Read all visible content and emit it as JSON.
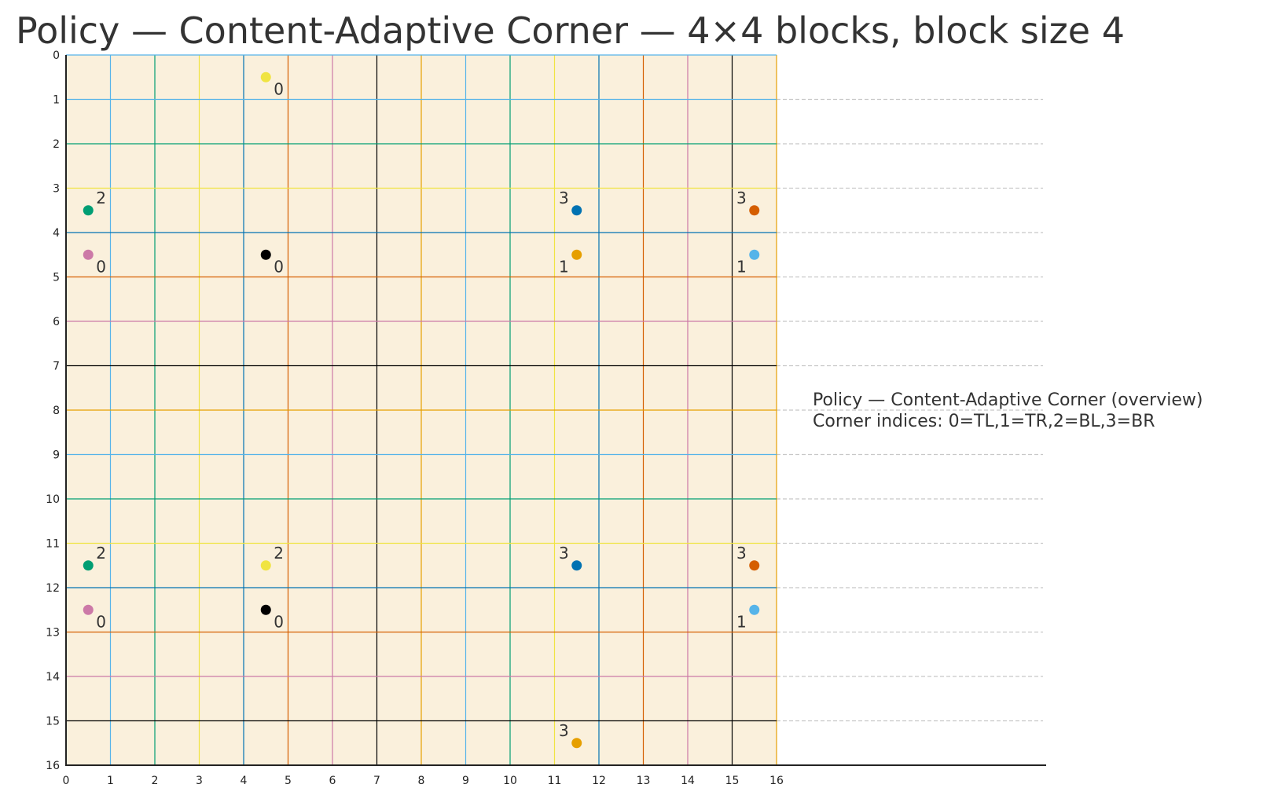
{
  "chart_data": {
    "type": "scatter",
    "title": "Policy — Content-Adaptive Corner — 4×4 blocks, block size 4",
    "xlabel": "",
    "ylabel": "",
    "xlim": [
      0,
      16
    ],
    "ylim": [
      16,
      0
    ],
    "grid_extent_x": 22,
    "x_ticks": [
      0,
      1,
      2,
      3,
      4,
      5,
      6,
      7,
      8,
      9,
      10,
      11,
      12,
      13,
      14,
      15,
      16
    ],
    "y_ticks": [
      0,
      1,
      2,
      3,
      4,
      5,
      6,
      7,
      8,
      9,
      10,
      11,
      12,
      13,
      14,
      15,
      16
    ],
    "y_inverted": true,
    "background_color": "#faf0dc",
    "grid": true,
    "palette": [
      "#56b4e9",
      "#009e73",
      "#f0e442",
      "#0072b2",
      "#d55e00",
      "#cc79a7",
      "#000000",
      "#e69f00"
    ],
    "annotation": {
      "line1": "Policy — Content-Adaptive Corner (overview)",
      "line2": "Corner indices: 0=TL,1=TR,2=BL,3=BR"
    },
    "points": [
      {
        "x": 4.5,
        "y": 0.5,
        "label": "0",
        "color": "#f0e442",
        "label_pos": "bottom-right"
      },
      {
        "x": 0.5,
        "y": 3.5,
        "label": "2",
        "color": "#009e73",
        "label_pos": "top-right"
      },
      {
        "x": 11.5,
        "y": 3.5,
        "label": "3",
        "color": "#0072b2",
        "label_pos": "top-left"
      },
      {
        "x": 15.5,
        "y": 3.5,
        "label": "3",
        "color": "#d55e00",
        "label_pos": "top-left"
      },
      {
        "x": 0.5,
        "y": 4.5,
        "label": "0",
        "color": "#cc79a7",
        "label_pos": "bottom-right"
      },
      {
        "x": 4.5,
        "y": 4.5,
        "label": "0",
        "color": "#000000",
        "label_pos": "bottom-right"
      },
      {
        "x": 11.5,
        "y": 4.5,
        "label": "1",
        "color": "#e69f00",
        "label_pos": "bottom-left"
      },
      {
        "x": 15.5,
        "y": 4.5,
        "label": "1",
        "color": "#56b4e9",
        "label_pos": "bottom-left"
      },
      {
        "x": 0.5,
        "y": 11.5,
        "label": "2",
        "color": "#009e73",
        "label_pos": "top-right"
      },
      {
        "x": 4.5,
        "y": 11.5,
        "label": "2",
        "color": "#f0e442",
        "label_pos": "top-right"
      },
      {
        "x": 11.5,
        "y": 11.5,
        "label": "3",
        "color": "#0072b2",
        "label_pos": "top-left"
      },
      {
        "x": 15.5,
        "y": 11.5,
        "label": "3",
        "color": "#d55e00",
        "label_pos": "top-left"
      },
      {
        "x": 0.5,
        "y": 12.5,
        "label": "0",
        "color": "#cc79a7",
        "label_pos": "bottom-right"
      },
      {
        "x": 4.5,
        "y": 12.5,
        "label": "0",
        "color": "#000000",
        "label_pos": "bottom-right"
      },
      {
        "x": 15.5,
        "y": 12.5,
        "label": "1",
        "color": "#56b4e9",
        "label_pos": "bottom-left"
      },
      {
        "x": 11.5,
        "y": 15.5,
        "label": "3",
        "color": "#e69f00",
        "label_pos": "top-left"
      }
    ]
  }
}
